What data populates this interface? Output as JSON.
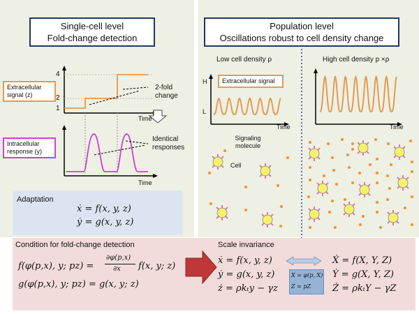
{
  "left": {
    "title_line1": "Single-cell level",
    "title_line2": "Fold-change detection",
    "extracellular_label": "Extracellular signal (z)",
    "intracellular_label": "Intracellular response  (y)",
    "two_fold": "2-fold change",
    "identical": "Identical responses",
    "time1": "Time",
    "time2": "Time",
    "tick_4": "4",
    "tick_2": "2",
    "tick_1": "1",
    "adaptation_title": "Adaptation",
    "adapt_eq1": "ẋ = f(x, y, z)",
    "adapt_eq2": "ẏ = g(x, y, z)"
  },
  "right": {
    "title_line1": "Population level",
    "title_line2": "Oscillations robust to cell density change",
    "low_density": "Low cell density ρ",
    "high_density": "High cell density p ×ρ",
    "extracellular_signal": "Extracellular  signal",
    "axis_H": "H",
    "axis_L": "L",
    "time_low": "Time",
    "time_high": "Time",
    "signaling_molecule": "Signaling molecule",
    "cell": "Cell"
  },
  "bottom": {
    "condition_title": "Condition for fold-change detection",
    "cond_eq1_lhs": "f(φ(p,x), y; pz) =",
    "cond_eq1_num": "∂φ(p,x)",
    "cond_eq1_den": "∂x",
    "cond_eq1_rhs": "f(x, y; z)",
    "cond_eq2": "g(φ(p,x), y; pz) = g(x, y; z)",
    "scale_title": "Scale invariance",
    "si_left_1": "ẋ = f(x, y, z)",
    "si_left_2": "ẏ = g(x, y, z)",
    "si_left_3": "ż = ρkₜy − γz",
    "si_right_1": "Ẋ = f(X, Y, Z)",
    "si_right_2": "Ẏ = g(X, Y, Z)",
    "si_right_3": "Ż = ρkₜY − γZ",
    "transform_1": "X = φ(p, X)",
    "transform_2": "Z = pZ"
  },
  "colors": {
    "panel": "#eef0e4",
    "orange": "#e59a52",
    "magenta": "#d13fd1",
    "adaptation_bg": "#dbe5f1",
    "condition_bg": "#f2dcdb",
    "arrow_red": "#c0373a",
    "title_border": "#1f3763",
    "cell_yellow": "#f7f06a",
    "dots": "#f0922e"
  }
}
